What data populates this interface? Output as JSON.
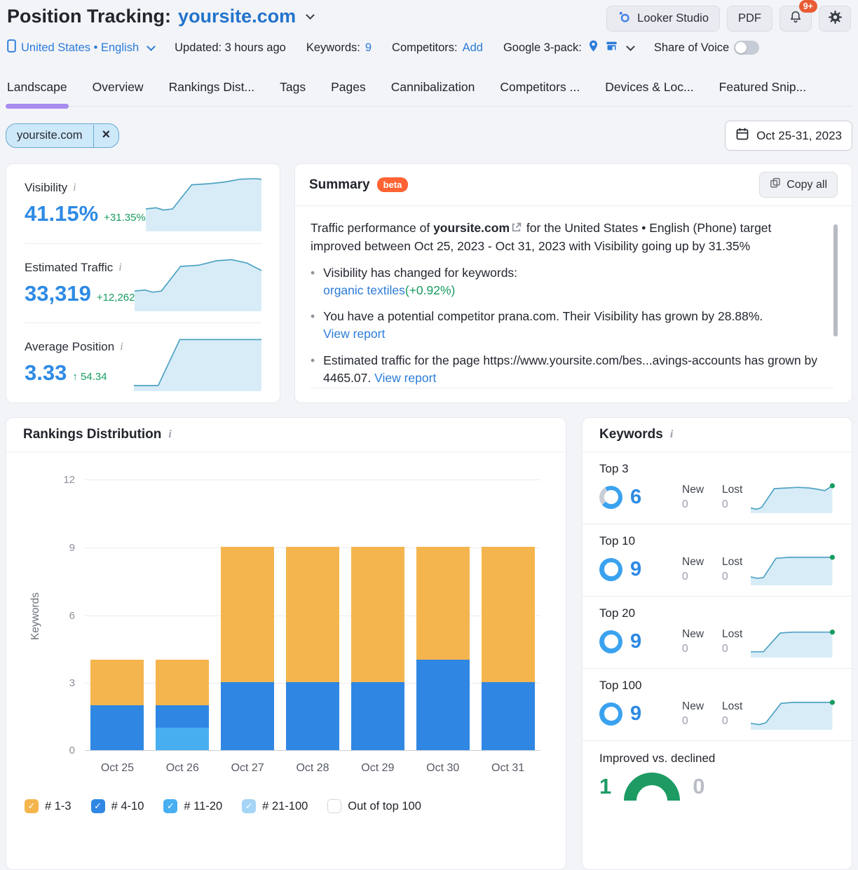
{
  "colors": {
    "link_blue": "#2b7cd9",
    "value_blue": "#2e8ae4",
    "green": "#189c60",
    "tab_accent": "#a78bee",
    "spark_line": "#4fa3c2",
    "spark_fill": "#d8ecf8",
    "ring_blue": "#3aa2ef",
    "ring_gray": "#c9ced6",
    "gauge_green": "#1d9b63",
    "badge_orange": "#ff6233"
  },
  "header": {
    "title": "Position Tracking:",
    "project": "yoursite.com",
    "looker_btn": "Looker Studio",
    "pdf_btn": "PDF",
    "bell_badge": "9+",
    "location_lang": "United States • English",
    "updated": "Updated: 3 hours ago",
    "keywords_label": "Keywords:",
    "keywords_value": "9",
    "competitors_label": "Competitors:",
    "competitors_add": "Add",
    "google_label": "Google 3-pack:",
    "sov_label": "Share of Voice"
  },
  "tabs": [
    {
      "label": "Landscape",
      "active": true
    },
    {
      "label": "Overview"
    },
    {
      "label": "Rankings Dist..."
    },
    {
      "label": "Tags"
    },
    {
      "label": "Pages"
    },
    {
      "label": "Cannibalization"
    },
    {
      "label": "Competitors ..."
    },
    {
      "label": "Devices & Loc..."
    },
    {
      "label": "Featured Snip..."
    }
  ],
  "filter": {
    "chip_label": "yoursite.com",
    "chip_close": "×",
    "date_range": "Oct 25-31, 2023"
  },
  "stats": [
    {
      "label": "Visibility",
      "value": "41.15%",
      "delta": "+31.35%",
      "spark": [
        [
          0,
          60
        ],
        [
          8,
          58
        ],
        [
          14,
          62
        ],
        [
          21,
          60
        ],
        [
          36,
          17
        ],
        [
          50,
          15
        ],
        [
          62,
          12
        ],
        [
          74,
          7
        ],
        [
          86,
          6
        ],
        [
          94,
          8
        ],
        [
          100,
          18
        ]
      ]
    },
    {
      "label": "Estimated Traffic",
      "value": "33,319",
      "delta": "+12,262",
      "spark": [
        [
          0,
          64
        ],
        [
          8,
          62
        ],
        [
          14,
          66
        ],
        [
          21,
          64
        ],
        [
          36,
          20
        ],
        [
          50,
          18
        ],
        [
          64,
          10
        ],
        [
          76,
          8
        ],
        [
          88,
          14
        ],
        [
          100,
          28
        ]
      ]
    },
    {
      "label": "Average Position",
      "value": "3.33",
      "delta": "↑ 54.34",
      "spark": [
        [
          0,
          90
        ],
        [
          19,
          90
        ],
        [
          36,
          8
        ],
        [
          100,
          8
        ]
      ]
    }
  ],
  "summary": {
    "title": "Summary",
    "badge": "beta",
    "copy_btn": "Copy all",
    "intro": [
      {
        "t": "Traffic performance of "
      },
      {
        "t": "yoursite.com",
        "c": "bold"
      },
      {
        "icon": "external-link"
      },
      {
        "t": " for the United States • English (Phone) target improved between Oct 25, 2023 - Oct 31, 2023 with Visibility going up by 31.35%"
      }
    ],
    "bullets": [
      [
        {
          "t": "Visibility has changed for keywords:"
        },
        {
          "br": true
        },
        {
          "t": "organic textiles",
          "c": "link"
        },
        {
          "t": "(+0.92%)",
          "c": "green"
        }
      ],
      [
        {
          "t": "You have a potential competitor prana.com. Their Visibility has grown by 28.88%."
        },
        {
          "br": true
        },
        {
          "t": "View report",
          "c": "link"
        }
      ],
      [
        {
          "t": "Estimated traffic for the page https://www.yoursite.com/bes...avings-accounts has grown by 4465.07. "
        },
        {
          "t": "View report",
          "c": "link"
        }
      ]
    ]
  },
  "rankings": {
    "title": "Rankings Distribution"
  },
  "chart_data": {
    "type": "bar",
    "stacked": true,
    "title": "Rankings Distribution",
    "categories": [
      "Oct 25",
      "Oct 26",
      "Oct 27",
      "Oct 28",
      "Oct 29",
      "Oct 30",
      "Oct 31"
    ],
    "series": [
      {
        "name": "# 1-3",
        "color": "#f5b54e",
        "values": [
          2,
          2,
          6,
          6,
          6,
          5,
          6
        ]
      },
      {
        "name": "# 4-10",
        "color": "#2f87e3",
        "values": [
          2,
          1,
          3,
          3,
          3,
          4,
          3
        ]
      },
      {
        "name": "# 11-20",
        "color": "#47aff0",
        "values": [
          0,
          1,
          0,
          0,
          0,
          0,
          0
        ]
      },
      {
        "name": "# 21-100",
        "color": "#a5d4f6",
        "values": [
          0,
          0,
          0,
          0,
          0,
          0,
          0
        ]
      }
    ],
    "legend_unchecked": "Out of top 100",
    "xlabel": "",
    "ylabel": "Keywords",
    "ylim": [
      0,
      12
    ],
    "yticks": [
      12,
      9,
      6,
      3,
      0
    ],
    "legend_position": "bottom",
    "grid": true
  },
  "keywords_panel": {
    "title": "Keywords",
    "new_label": "New",
    "lost_label": "Lost",
    "rows": [
      {
        "label": "Top 3",
        "value": "6",
        "new": "0",
        "lost": "0",
        "ring": "partial",
        "spark": [
          [
            0,
            84
          ],
          [
            7,
            88
          ],
          [
            13,
            82
          ],
          [
            28,
            24
          ],
          [
            42,
            22
          ],
          [
            56,
            20
          ],
          [
            70,
            22
          ],
          [
            80,
            26
          ],
          [
            88,
            30
          ],
          [
            97,
            15
          ]
        ]
      },
      {
        "label": "Top 10",
        "value": "9",
        "new": "0",
        "lost": "0",
        "ring": "full",
        "spark": [
          [
            0,
            74
          ],
          [
            8,
            78
          ],
          [
            15,
            76
          ],
          [
            30,
            16
          ],
          [
            45,
            13
          ],
          [
            97,
            13
          ]
        ]
      },
      {
        "label": "Top 20",
        "value": "9",
        "new": "0",
        "lost": "0",
        "ring": "full",
        "spark": [
          [
            0,
            82
          ],
          [
            15,
            82
          ],
          [
            35,
            24
          ],
          [
            50,
            21
          ],
          [
            97,
            21
          ]
        ]
      },
      {
        "label": "Top 100",
        "value": "9",
        "new": "0",
        "lost": "0",
        "ring": "full",
        "spark": [
          [
            0,
            80
          ],
          [
            10,
            84
          ],
          [
            18,
            78
          ],
          [
            36,
            18
          ],
          [
            50,
            15
          ],
          [
            97,
            15
          ]
        ]
      }
    ],
    "improved": {
      "label": "Improved vs. declined",
      "improved": "1",
      "declined": "0"
    }
  }
}
